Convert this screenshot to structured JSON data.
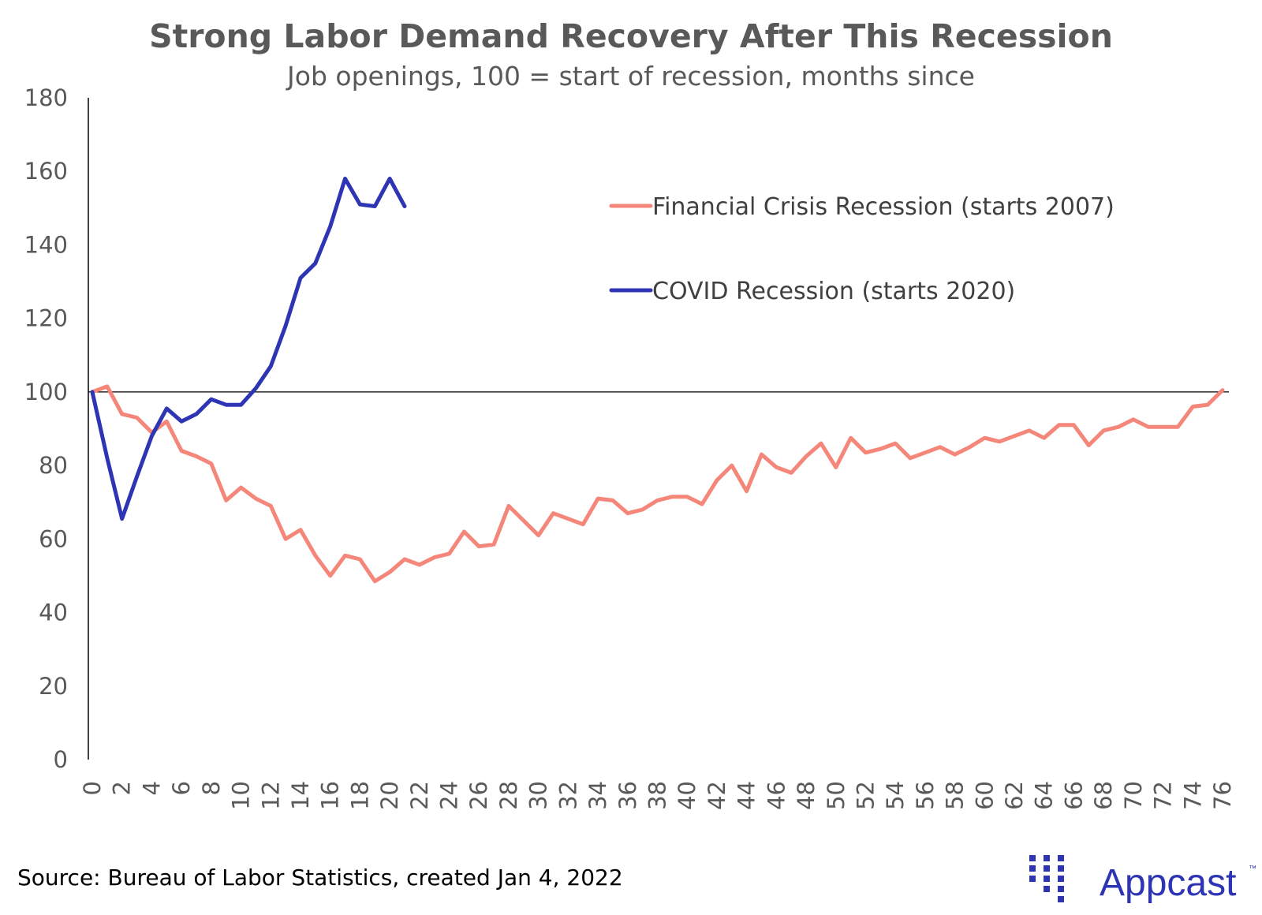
{
  "chart_data": {
    "type": "line",
    "title": "Strong Labor Demand Recovery After This Recession",
    "subtitle": "Job openings, 100 = start of recession, months since",
    "x_ticks": [
      0,
      2,
      4,
      6,
      8,
      10,
      12,
      14,
      16,
      18,
      20,
      22,
      24,
      26,
      28,
      30,
      32,
      34,
      36,
      38,
      40,
      42,
      44,
      46,
      48,
      50,
      52,
      54,
      56,
      58,
      60,
      62,
      64,
      66,
      68,
      70,
      72,
      74,
      76
    ],
    "xlim": [
      0,
      76
    ],
    "ylim": [
      0,
      180
    ],
    "y_ticks": [
      0,
      20,
      40,
      60,
      80,
      100,
      120,
      140,
      160,
      180
    ],
    "reference_line": 100,
    "grid": false,
    "legend_position": "upper right",
    "series": [
      {
        "name": "Financial Crisis Recession (starts 2007)",
        "color": "#F4877A",
        "x": [
          0,
          1,
          2,
          3,
          4,
          5,
          6,
          7,
          8,
          9,
          10,
          11,
          12,
          13,
          14,
          15,
          16,
          17,
          18,
          19,
          20,
          21,
          22,
          23,
          24,
          25,
          26,
          27,
          28,
          29,
          30,
          31,
          32,
          33,
          34,
          35,
          36,
          37,
          38,
          39,
          40,
          41,
          42,
          43,
          44,
          45,
          46,
          47,
          48,
          49,
          50,
          51,
          52,
          53,
          54,
          55,
          56,
          57,
          58,
          59,
          60,
          61,
          62,
          63,
          64,
          65,
          66,
          67,
          68,
          69,
          70,
          71,
          72,
          73,
          74,
          75,
          76
        ],
        "values": [
          100,
          101.5,
          94,
          93,
          89,
          92,
          84,
          82.5,
          80.5,
          70.5,
          74,
          71,
          69,
          60,
          62.5,
          55.5,
          50,
          55.5,
          54.5,
          48.5,
          51,
          54.5,
          53,
          55,
          56,
          62,
          58,
          58.5,
          69,
          65,
          61,
          67,
          65.5,
          64,
          71,
          70.5,
          67,
          68,
          70.5,
          71.5,
          71.5,
          69.5,
          76,
          80,
          73,
          83,
          79.5,
          78,
          82.5,
          86,
          79.5,
          87.5,
          83.5,
          84.5,
          86,
          82,
          83.5,
          85,
          83,
          85,
          87.5,
          86.5,
          88,
          89.5,
          87.5,
          91,
          91,
          85.5,
          89.5,
          90.5,
          92.5,
          90.5,
          90.5,
          90.5,
          96,
          96.5,
          100.5
        ]
      },
      {
        "name": "COVID Recession (starts 2020)",
        "color": "#2E35B5",
        "x": [
          0,
          1,
          2,
          3,
          4,
          5,
          6,
          7,
          8,
          9,
          10,
          11,
          12,
          13,
          14,
          15,
          16,
          17,
          18,
          19,
          20,
          21
        ],
        "values": [
          100,
          82,
          65.5,
          77,
          88,
          95.5,
          92,
          94,
          98,
          96.5,
          96.5,
          101,
          107,
          118,
          131,
          135,
          145,
          158,
          151,
          150.5,
          158,
          150.5
        ]
      }
    ]
  },
  "footer": {
    "source": "Source: Bureau of Labor Statistics, created Jan 4, 2022",
    "brand": "Appcast",
    "trademark": "™",
    "brand_color": "#2E35B5"
  }
}
